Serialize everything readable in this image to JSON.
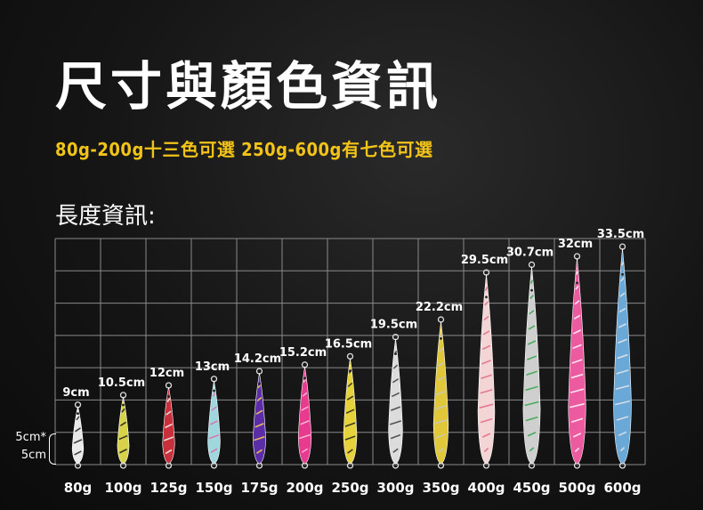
{
  "header": {
    "title": "尺寸與顏色資訊",
    "subtitle": "80g-200g十三色可選  250g-600g有七色可選",
    "section_label": "長度資訊:"
  },
  "scale_note": {
    "top": "5cm*",
    "bottom": "5cm"
  },
  "colors": {
    "accent": "#f2c318",
    "grid": "#8a8a8a",
    "text": "#ffffff"
  },
  "chart_data": {
    "type": "bar",
    "categories": [
      "80g",
      "100g",
      "125g",
      "150g",
      "175g",
      "200g",
      "250g",
      "300g",
      "350g",
      "400g",
      "450g",
      "500g",
      "600g"
    ],
    "values": [
      9,
      10.5,
      12,
      13,
      14.2,
      15.2,
      16.5,
      19.5,
      22.2,
      29.5,
      30.7,
      32,
      33.5
    ],
    "data_labels": [
      "9cm",
      "10.5cm",
      "12cm",
      "13cm",
      "14.2cm",
      "15.2cm",
      "16.5cm",
      "19.5cm",
      "22.2cm",
      "29.5cm",
      "30.7cm",
      "32cm",
      "33.5cm"
    ],
    "unit": "cm",
    "ylim": [
      0,
      35
    ],
    "grid": true,
    "lure_colors": [
      {
        "body": "#e9e9e9",
        "stripe": "#222222"
      },
      {
        "body": "#d8d24a",
        "stripe": "#1a1a1a"
      },
      {
        "body": "#c8303c",
        "stripe": "#f2f2f2"
      },
      {
        "body": "#9fd7df",
        "stripe": "#e06aa6"
      },
      {
        "body": "#5b2ea8",
        "stripe": "#ffd34a"
      },
      {
        "body": "#e83a8e",
        "stripe": "#f7c8e0"
      },
      {
        "body": "#e6d23a",
        "stripe": "#222222"
      },
      {
        "body": "#dcdcdc",
        "stripe": "#3a3a3a"
      },
      {
        "body": "#e0c83a",
        "stripe": "#c8c8c8"
      },
      {
        "body": "#f3d5d5",
        "stripe": "#e06a8a"
      },
      {
        "body": "#cfcfcf",
        "stripe": "#2fa84a"
      },
      {
        "body": "#ec5aa0",
        "stripe": "#ffffff"
      },
      {
        "body": "#6aa8d8",
        "stripe": "#e8e8e8"
      }
    ]
  }
}
